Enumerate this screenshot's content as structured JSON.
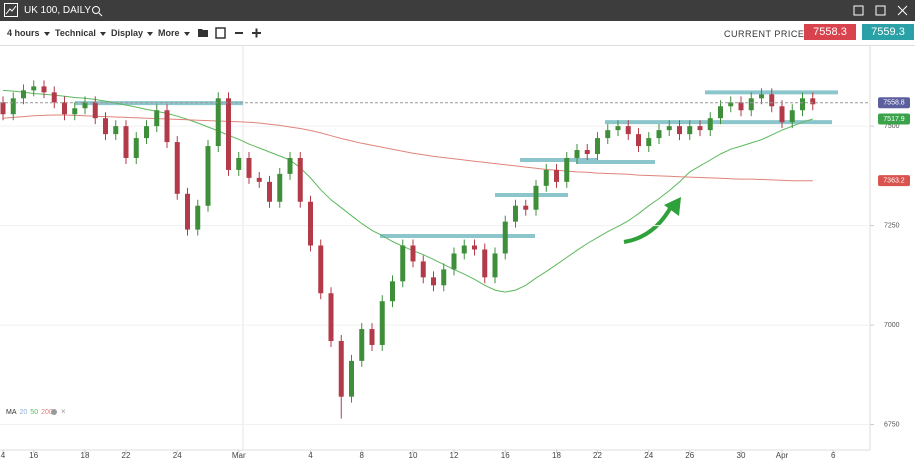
{
  "header": {
    "title": "UK 100, DAILY",
    "menus": [
      "4 hours",
      "Technical",
      "Display",
      "More"
    ],
    "price_label": "CURRENT PRICE:",
    "sell": "7558.3",
    "buy": "7559.3"
  },
  "chart_data": {
    "type": "candlestick",
    "categories": [
      "4",
      null,
      null,
      "16",
      null,
      null,
      null,
      null,
      "18",
      null,
      null,
      null,
      "22",
      null,
      null,
      null,
      null,
      "24",
      null,
      null,
      null,
      null,
      null,
      "Mar",
      null,
      null,
      null,
      null,
      null,
      null,
      "4",
      null,
      null,
      null,
      null,
      "8",
      null,
      null,
      null,
      null,
      "10",
      null,
      null,
      null,
      "12",
      null,
      null,
      null,
      null,
      "16",
      null,
      null,
      null,
      null,
      "18",
      null,
      null,
      null,
      "22",
      null,
      null,
      null,
      null,
      "24",
      null,
      null,
      null,
      "26",
      null,
      null,
      null,
      null,
      "30",
      null,
      null,
      null,
      "Apr",
      null,
      null,
      null,
      null,
      "6"
    ],
    "open": [
      7560,
      7530,
      7570,
      7590,
      7600,
      7585,
      7560,
      7530,
      7545,
      7560,
      7520,
      7480,
      7500,
      7420,
      7470,
      7500,
      7540,
      7460,
      7330,
      7240,
      7300,
      7450,
      7570,
      7390,
      7420,
      7370,
      7360,
      7310,
      7380,
      7420,
      7310,
      7200,
      7080,
      6960,
      6820,
      6910,
      6990,
      6950,
      7060,
      7110,
      7200,
      7160,
      7120,
      7100,
      7140,
      7180,
      7200,
      7190,
      7120,
      7180,
      7260,
      7300,
      7290,
      7350,
      7390,
      7360,
      7420,
      7440,
      7430,
      7470,
      7490,
      7500,
      7480,
      7450,
      7470,
      7490,
      7500,
      7480,
      7500,
      7490,
      7520,
      7550,
      7560,
      7540,
      7570,
      7580,
      7550,
      7510,
      7540,
      7570,
      null,
      null
    ],
    "high": [
      7575,
      7585,
      7605,
      7615,
      7615,
      7600,
      7575,
      7560,
      7575,
      7575,
      7535,
      7515,
      7515,
      7485,
      7515,
      7555,
      7555,
      7475,
      7345,
      7315,
      7465,
      7585,
      7585,
      7435,
      7435,
      7385,
      7375,
      7395,
      7435,
      7435,
      7325,
      7215,
      7095,
      6975,
      6925,
      7005,
      7005,
      7075,
      7125,
      7215,
      7215,
      7175,
      7135,
      7155,
      7195,
      7215,
      7215,
      7205,
      7195,
      7275,
      7315,
      7315,
      7365,
      7405,
      7405,
      7435,
      7455,
      7455,
      7485,
      7505,
      7515,
      7515,
      7495,
      7485,
      7505,
      7515,
      7515,
      7515,
      7515,
      7535,
      7565,
      7575,
      7575,
      7585,
      7595,
      7595,
      7565,
      7555,
      7585,
      7585,
      null,
      null
    ],
    "low": [
      7515,
      7515,
      7555,
      7575,
      7570,
      7545,
      7515,
      7515,
      7530,
      7505,
      7465,
      7465,
      7405,
      7405,
      7455,
      7485,
      7445,
      7315,
      7225,
      7225,
      7285,
      7435,
      7375,
      7375,
      7355,
      7345,
      7295,
      7295,
      7365,
      7295,
      7185,
      7065,
      6945,
      6765,
      6805,
      6895,
      6935,
      6935,
      7045,
      7095,
      7145,
      7105,
      7085,
      7085,
      7125,
      7165,
      7175,
      7105,
      7105,
      7165,
      7245,
      7275,
      7275,
      7335,
      7345,
      7345,
      7405,
      7415,
      7415,
      7455,
      7475,
      7465,
      7435,
      7435,
      7455,
      7475,
      7465,
      7465,
      7475,
      7475,
      7505,
      7535,
      7525,
      7525,
      7555,
      7535,
      7495,
      7495,
      7525,
      7540,
      null,
      null
    ],
    "close": [
      7530,
      7570,
      7590,
      7600,
      7585,
      7560,
      7530,
      7545,
      7560,
      7520,
      7480,
      7500,
      7420,
      7470,
      7500,
      7540,
      7460,
      7330,
      7240,
      7300,
      7450,
      7570,
      7390,
      7420,
      7370,
      7360,
      7310,
      7380,
      7420,
      7310,
      7200,
      7080,
      6960,
      6820,
      6910,
      6990,
      6950,
      7060,
      7110,
      7200,
      7160,
      7120,
      7100,
      7140,
      7180,
      7200,
      7190,
      7120,
      7180,
      7260,
      7300,
      7290,
      7350,
      7390,
      7360,
      7420,
      7440,
      7430,
      7470,
      7490,
      7500,
      7480,
      7450,
      7470,
      7490,
      7500,
      7480,
      7500,
      7490,
      7520,
      7550,
      7560,
      7540,
      7570,
      7580,
      7550,
      7510,
      7540,
      7570,
      7555,
      null,
      null
    ],
    "up_color": "#3f8f3a",
    "down_color": "#b33a48",
    "series": [
      {
        "name": "50",
        "color": "#5cb85c",
        "values": [
          7590,
          7588,
          7585,
          7582,
          7580,
          7578,
          7575,
          7572,
          7570,
          7567,
          7563,
          7558,
          7553,
          7548,
          7542,
          7537,
          7532,
          7525,
          7517,
          7508,
          7498,
          7488,
          7477,
          7467,
          7455,
          7445,
          7435,
          7425,
          7415,
          7395,
          7370,
          7340,
          7315,
          7295,
          7275,
          7255,
          7238,
          7225,
          7210,
          7198,
          7187,
          7177,
          7165,
          7152,
          7140,
          7128,
          7115,
          7100,
          7088,
          7083,
          7088,
          7100,
          7118,
          7135,
          7152,
          7170,
          7188,
          7205,
          7220,
          7235,
          7248,
          7262,
          7280,
          7300,
          7318,
          7338,
          7360,
          7385,
          7400,
          7415,
          7430,
          7442,
          7450,
          7458,
          7466,
          7478,
          7490,
          7500,
          7510,
          7518,
          null,
          null
        ]
      },
      {
        "name": "200",
        "color": "#e0847a",
        "values": [
          7520,
          7522,
          7524,
          7526,
          7527,
          7528,
          7528,
          7527,
          7526,
          7525,
          7524,
          7523,
          7522,
          7521,
          7520,
          7519,
          7518,
          7517,
          7516,
          7515,
          7514,
          7513,
          7512,
          7511,
          7510,
          7508,
          7505,
          7502,
          7498,
          7494,
          7489,
          7483,
          7476,
          7469,
          7463,
          7457,
          7452,
          7447,
          7442,
          7437,
          7432,
          7428,
          7424,
          7421,
          7418,
          7415,
          7412,
          7409,
          7406,
          7403,
          7400,
          7397,
          7394,
          7391,
          7389,
          7387,
          7385,
          7384,
          7382,
          7381,
          7380,
          7379,
          7377,
          7376,
          7375,
          7374,
          7373,
          7372,
          7371,
          7370,
          7369,
          7368,
          7367,
          7367,
          7366,
          7365,
          7364,
          7363,
          7363,
          7363,
          null,
          null
        ]
      }
    ],
    "legend_label": "MA",
    "legend_extra": {
      "name": "20",
      "color": "#8fb1d6"
    },
    "levels": [
      7558,
      7224,
      7327,
      7415,
      7410,
      7510,
      7585
    ],
    "level_color": "#8cc6cc",
    "price_tags": [
      {
        "value": 7558.8,
        "color": "#5c5f9e"
      },
      {
        "value": 7517.9,
        "color": "#3aa34a"
      },
      {
        "value": 7363.2,
        "color": "#d9534f"
      }
    ],
    "ylim": [
      6686,
      7704
    ],
    "yticks": [
      6750,
      7000,
      7250,
      7500
    ],
    "grid": true
  }
}
